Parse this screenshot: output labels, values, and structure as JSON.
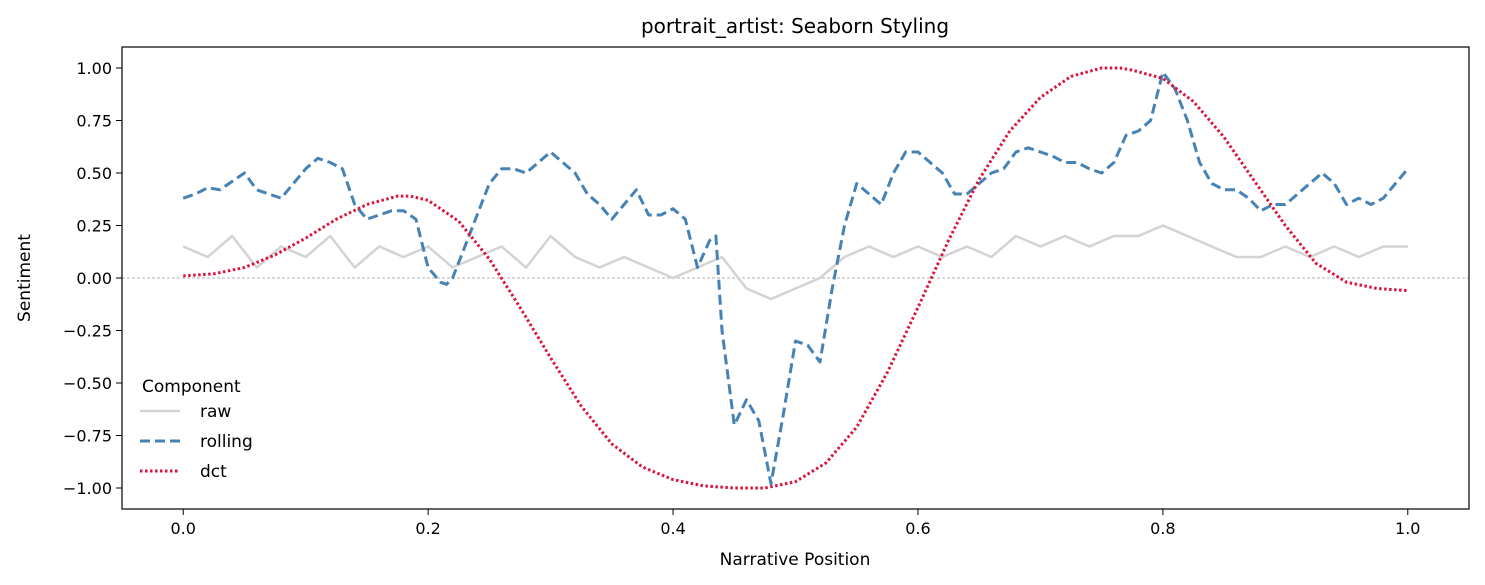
{
  "chart_data": {
    "type": "line",
    "title": "portrait_artist: Seaborn Styling",
    "xlabel": "Narrative Position",
    "ylabel": "Sentiment",
    "xlim": [
      -0.05,
      1.05
    ],
    "ylim": [
      -1.1,
      1.1
    ],
    "xticks": [
      0.0,
      0.2,
      0.4,
      0.6,
      0.8,
      1.0
    ],
    "xtick_labels": [
      "0.0",
      "0.2",
      "0.4",
      "0.6",
      "0.8",
      "1.0"
    ],
    "yticks": [
      1.0,
      0.75,
      0.5,
      0.25,
      0.0,
      -0.25,
      -0.5,
      -0.75,
      -1.0
    ],
    "ytick_labels": [
      "1.00",
      "0.75",
      "0.50",
      "0.25",
      "0.00",
      "−0.25",
      "−0.50",
      "−0.75",
      "−1.00"
    ],
    "zero_line": true,
    "grid": false,
    "legend": {
      "title": "Component",
      "placement": "lower-left"
    },
    "series": [
      {
        "name": "raw",
        "style": "solid",
        "color": "#d3d3d3",
        "x": [
          0.0,
          0.02,
          0.04,
          0.06,
          0.08,
          0.1,
          0.12,
          0.14,
          0.16,
          0.18,
          0.2,
          0.22,
          0.24,
          0.26,
          0.28,
          0.3,
          0.32,
          0.34,
          0.36,
          0.38,
          0.4,
          0.42,
          0.44,
          0.46,
          0.48,
          0.5,
          0.52,
          0.54,
          0.56,
          0.58,
          0.6,
          0.62,
          0.64,
          0.66,
          0.68,
          0.7,
          0.72,
          0.74,
          0.76,
          0.78,
          0.8,
          0.82,
          0.84,
          0.86,
          0.88,
          0.9,
          0.92,
          0.94,
          0.96,
          0.98,
          1.0
        ],
        "values": [
          0.15,
          0.1,
          0.2,
          0.05,
          0.15,
          0.1,
          0.2,
          0.05,
          0.15,
          0.1,
          0.15,
          0.05,
          0.1,
          0.15,
          0.05,
          0.2,
          0.1,
          0.05,
          0.1,
          0.05,
          0.0,
          0.05,
          0.1,
          -0.05,
          -0.1,
          -0.05,
          0.0,
          0.1,
          0.15,
          0.1,
          0.15,
          0.1,
          0.15,
          0.1,
          0.2,
          0.15,
          0.2,
          0.15,
          0.2,
          0.2,
          0.25,
          0.2,
          0.15,
          0.1,
          0.1,
          0.15,
          0.1,
          0.15,
          0.1,
          0.15,
          0.15
        ]
      },
      {
        "name": "rolling",
        "style": "dashed",
        "color": "#4682b4",
        "x": [
          0.0,
          0.01,
          0.02,
          0.03,
          0.04,
          0.05,
          0.06,
          0.07,
          0.08,
          0.09,
          0.1,
          0.11,
          0.12,
          0.13,
          0.14,
          0.15,
          0.16,
          0.17,
          0.18,
          0.19,
          0.2,
          0.21,
          0.215,
          0.22,
          0.23,
          0.24,
          0.25,
          0.26,
          0.27,
          0.28,
          0.29,
          0.3,
          0.31,
          0.32,
          0.33,
          0.34,
          0.35,
          0.36,
          0.37,
          0.38,
          0.39,
          0.4,
          0.41,
          0.42,
          0.43,
          0.435,
          0.44,
          0.45,
          0.46,
          0.47,
          0.48,
          0.49,
          0.5,
          0.51,
          0.52,
          0.53,
          0.54,
          0.55,
          0.56,
          0.57,
          0.58,
          0.59,
          0.6,
          0.61,
          0.62,
          0.63,
          0.64,
          0.65,
          0.66,
          0.67,
          0.68,
          0.69,
          0.7,
          0.71,
          0.72,
          0.73,
          0.74,
          0.75,
          0.76,
          0.77,
          0.78,
          0.79,
          0.8,
          0.81,
          0.82,
          0.83,
          0.84,
          0.85,
          0.86,
          0.87,
          0.88,
          0.89,
          0.9,
          0.91,
          0.92,
          0.93,
          0.94,
          0.95,
          0.96,
          0.97,
          0.98,
          0.99,
          1.0
        ],
        "values": [
          0.38,
          0.4,
          0.43,
          0.42,
          0.46,
          0.5,
          0.42,
          0.4,
          0.38,
          0.45,
          0.52,
          0.57,
          0.55,
          0.52,
          0.35,
          0.28,
          0.3,
          0.32,
          0.32,
          0.28,
          0.05,
          -0.02,
          -0.03,
          0.0,
          0.15,
          0.3,
          0.45,
          0.52,
          0.52,
          0.5,
          0.55,
          0.6,
          0.55,
          0.5,
          0.4,
          0.35,
          0.28,
          0.35,
          0.42,
          0.3,
          0.3,
          0.33,
          0.28,
          0.05,
          0.18,
          0.2,
          -0.25,
          -0.7,
          -0.58,
          -0.68,
          -0.98,
          -0.65,
          -0.3,
          -0.32,
          -0.4,
          -0.05,
          0.25,
          0.45,
          0.4,
          0.35,
          0.5,
          0.6,
          0.6,
          0.55,
          0.5,
          0.4,
          0.4,
          0.45,
          0.5,
          0.52,
          0.6,
          0.62,
          0.6,
          0.58,
          0.55,
          0.55,
          0.52,
          0.5,
          0.55,
          0.68,
          0.7,
          0.75,
          0.98,
          0.9,
          0.75,
          0.55,
          0.45,
          0.42,
          0.42,
          0.38,
          0.32,
          0.35,
          0.35,
          0.4,
          0.45,
          0.5,
          0.45,
          0.35,
          0.38,
          0.35,
          0.38,
          0.45,
          0.52
        ]
      },
      {
        "name": "dct",
        "style": "dotted",
        "color": "#dc143c",
        "x": [
          0.0,
          0.025,
          0.05,
          0.075,
          0.1,
          0.125,
          0.15,
          0.175,
          0.185,
          0.2,
          0.225,
          0.25,
          0.275,
          0.3,
          0.325,
          0.35,
          0.375,
          0.4,
          0.425,
          0.45,
          0.475,
          0.5,
          0.525,
          0.55,
          0.575,
          0.6,
          0.625,
          0.65,
          0.675,
          0.7,
          0.725,
          0.75,
          0.765,
          0.775,
          0.8,
          0.825,
          0.85,
          0.875,
          0.9,
          0.925,
          0.95,
          0.975,
          1.0
        ],
        "values": [
          0.01,
          0.02,
          0.05,
          0.11,
          0.19,
          0.28,
          0.35,
          0.39,
          0.39,
          0.37,
          0.27,
          0.09,
          -0.14,
          -0.38,
          -0.61,
          -0.79,
          -0.9,
          -0.96,
          -0.99,
          -1.0,
          -1.0,
          -0.97,
          -0.88,
          -0.71,
          -0.45,
          -0.14,
          0.18,
          0.47,
          0.7,
          0.86,
          0.96,
          1.0,
          1.0,
          0.99,
          0.95,
          0.84,
          0.67,
          0.46,
          0.25,
          0.07,
          -0.02,
          -0.05,
          -0.06
        ]
      }
    ]
  }
}
